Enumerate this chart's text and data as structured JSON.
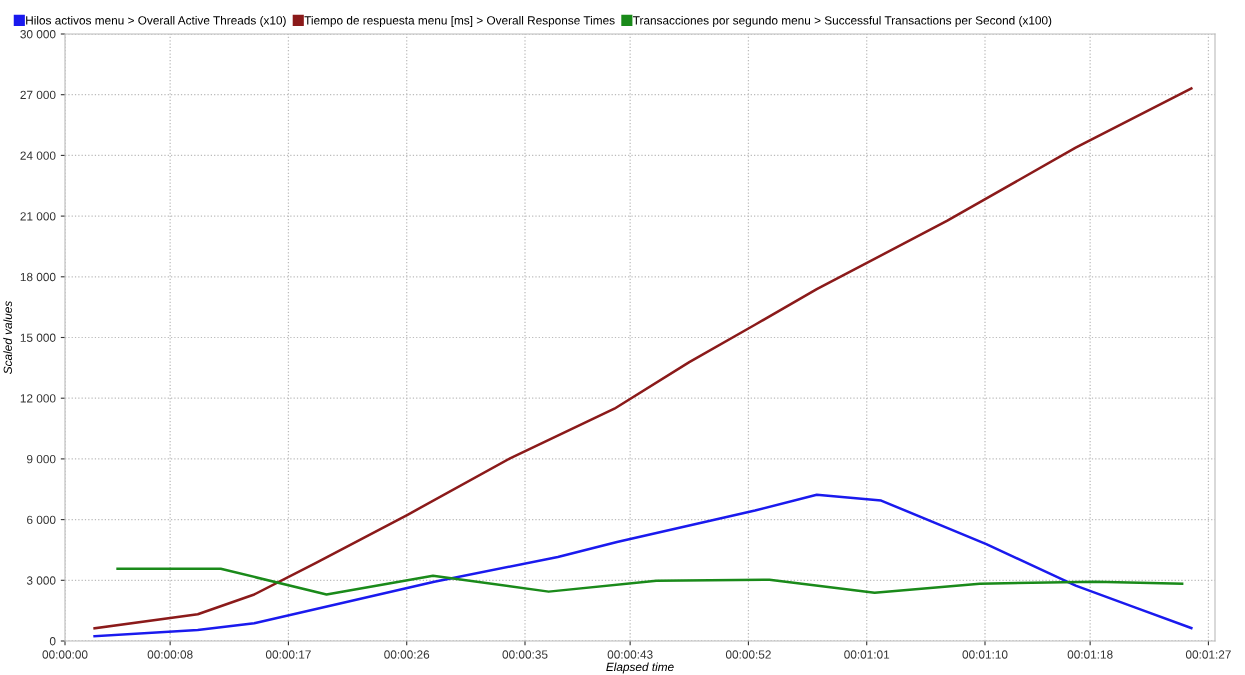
{
  "chart_data": {
    "type": "line",
    "xlabel": "Elapsed time",
    "ylabel": "Scaled values",
    "xlim": [
      0,
      87.5
    ],
    "xticks": [
      {
        "value": 0,
        "label": "00:00:00"
      },
      {
        "value": 8,
        "label": "00:00:08"
      },
      {
        "value": 17,
        "label": "00:00:17"
      },
      {
        "value": 26,
        "label": "00:00:26"
      },
      {
        "value": 35,
        "label": "00:00:35"
      },
      {
        "value": 43,
        "label": "00:00:43"
      },
      {
        "value": 52,
        "label": "00:00:52"
      },
      {
        "value": 61,
        "label": "00:01:01"
      },
      {
        "value": 70,
        "label": "00:01:10"
      },
      {
        "value": 78,
        "label": "00:01:18"
      },
      {
        "value": 87,
        "label": "00:01:27"
      }
    ],
    "ylim": [
      0,
      30000
    ],
    "yticks": [
      {
        "value": 0,
        "label": "0"
      },
      {
        "value": 3000,
        "label": "3 000"
      },
      {
        "value": 6000,
        "label": "6 000"
      },
      {
        "value": 9000,
        "label": "9 000"
      },
      {
        "value": 12000,
        "label": "12 000"
      },
      {
        "value": 15000,
        "label": "15 000"
      },
      {
        "value": 18000,
        "label": "18 000"
      },
      {
        "value": 21000,
        "label": "21 000"
      },
      {
        "value": 24000,
        "label": "24 000"
      },
      {
        "value": 27000,
        "label": "27 000"
      },
      {
        "value": 30000,
        "label": "30 000"
      }
    ],
    "grid": true,
    "legend": "top",
    "marker": "none",
    "line_style": "solid",
    "series": [
      {
        "name": "Hilos activos menu > Overall Active Threads (x10)",
        "color": "#1a1aee",
        "x": [
          2.25,
          10.1,
          14.4,
          28.1,
          37.5,
          42,
          52.5,
          57.2,
          62.1,
          70.1,
          76.9,
          81.4,
          85.7
        ],
        "values": [
          240,
          540,
          880,
          2930,
          4150,
          4890,
          6450,
          7230,
          6940,
          4790,
          2740,
          1660,
          640
        ]
      },
      {
        "name": "Tiempo de respuesta menu [ms] > Overall Response Times",
        "color": "#8b1a1a",
        "x": [
          2.25,
          10.1,
          14.4,
          19.1,
          26.1,
          33.9,
          41.8,
          47.5,
          52.5,
          57.2,
          67.1,
          76.9,
          85.7
        ],
        "values": [
          630,
          1320,
          2300,
          3860,
          6250,
          9040,
          11480,
          13780,
          15630,
          17390,
          20760,
          24380,
          27310
        ]
      },
      {
        "name": "Transacciones por segundo menu > Successful Transactions per Second (x100)",
        "color": "#1a8a1a",
        "x": [
          4,
          11.85,
          19.9,
          28,
          36.8,
          45,
          53.6,
          61.6,
          69.6,
          78.4,
          85
        ],
        "values": [
          3570,
          3570,
          2300,
          3220,
          2440,
          2980,
          3030,
          2390,
          2830,
          2930,
          2830
        ]
      }
    ]
  }
}
